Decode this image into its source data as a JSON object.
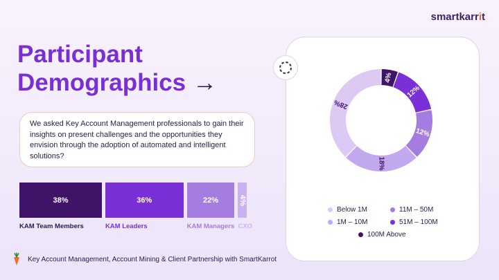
{
  "brand": {
    "name_main": "smartkarr",
    "name_accent": "i",
    "name_end": "t"
  },
  "title": {
    "line1": "Participant",
    "line2": "Demographics",
    "arrow": "→"
  },
  "intro_text": "We asked Key Account Management professionals to gain their insights on present challenges and the opportunities they envision through the adoption of automated and intelligent solutions?",
  "footer_text": "Key Account Management, Account Mining & Client Partnership with SmartKarrot",
  "colors": {
    "accent": "#7a2ed6",
    "dark": "#2b1a49",
    "orange": "#f26b2a"
  },
  "icons": {
    "brand_logo": "carrot-icon",
    "ring": "ring-icon",
    "arrow": "right-arrow-icon"
  },
  "chart_data": [
    {
      "type": "bar",
      "orientation": "horizontal-stacked",
      "categories": [
        "KAM Team Members",
        "KAM Leaders",
        "KAM Managers",
        "CXO"
      ],
      "values": [
        38,
        36,
        22,
        4
      ],
      "value_labels": [
        "38%",
        "36%",
        "22%",
        "4%"
      ],
      "colors": [
        "#3f1367",
        "#7b2fd6",
        "#a57de0",
        "#c9b2ef"
      ],
      "unit": "%"
    },
    {
      "type": "pie",
      "style": "donut",
      "categories": [
        "100M Above",
        "51M – 100M",
        "11M – 50M",
        "1M – 10M",
        "Below 1M"
      ],
      "values": [
        4,
        12,
        12,
        18,
        28
      ],
      "value_labels": [
        "4%",
        "12%",
        "12%",
        "18%",
        "28%"
      ],
      "colors": [
        "#3f1367",
        "#7b2fd6",
        "#a57de0",
        "#c2a8ee",
        "#dccaf5"
      ],
      "legend": {
        "placement": "bottom",
        "entries": [
          "Below 1M",
          "11M – 50M",
          "1M – 10M",
          "51M – 100M",
          "100M Above"
        ],
        "entry_colors": [
          "#dccaf5",
          "#a57de0",
          "#c2a8ee",
          "#7b2fd6",
          "#3f1367"
        ]
      }
    }
  ]
}
